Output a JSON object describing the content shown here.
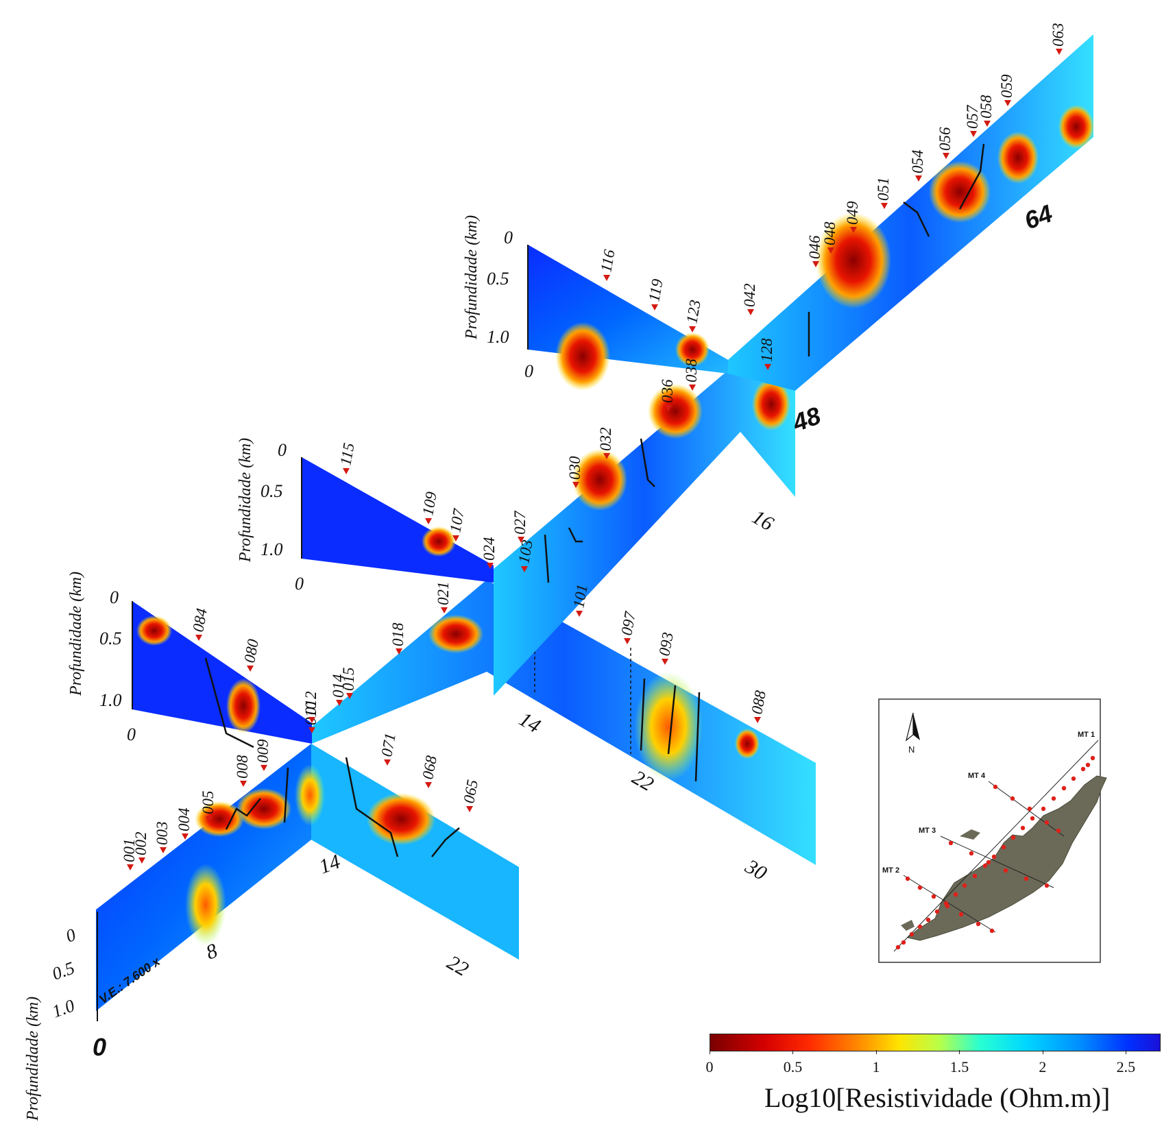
{
  "axis_label": "Profundidade (km)",
  "vertical_exaggeration": "V.E.: 7.600 x",
  "sections": [
    {
      "id": "MT2",
      "depth_ticks": [
        "0",
        "0.5",
        "1.0"
      ],
      "distance_ticks": [
        "0",
        "8",
        "14",
        "22"
      ],
      "stations": [
        "001",
        "002",
        "003",
        "004",
        "005",
        "008",
        "009",
        "010",
        "071",
        "068",
        "065"
      ]
    },
    {
      "id": "MT3",
      "depth_ticks": [
        "0",
        "0.5",
        "1.0",
        "0"
      ],
      "distance_ticks": [
        "14",
        "22",
        "30"
      ],
      "stations": [
        "084",
        "080",
        "012",
        "014",
        "015",
        "018",
        "021",
        "103",
        "101",
        "097",
        "093",
        "088"
      ]
    },
    {
      "id": "MT4",
      "depth_ticks": [
        "0",
        "0.5",
        "1.0",
        "0"
      ],
      "distance_ticks": [
        "16"
      ],
      "stations": [
        "115",
        "109",
        "107",
        "024",
        "027",
        "030",
        "032",
        "036",
        "038"
      ]
    },
    {
      "id": "MT1",
      "depth_ticks": [
        "0",
        "0.5",
        "1.0",
        "0"
      ],
      "distance_ticks": [
        "48",
        "64"
      ],
      "stations": [
        "116",
        "119",
        "123",
        "128",
        "042",
        "046",
        "048",
        "049",
        "051",
        "054",
        "056",
        "057",
        "058",
        "059",
        "063"
      ]
    }
  ],
  "legend": {
    "title": "Log10[Resistividade (Ohm.m)]",
    "ticks": [
      "0",
      "0.5",
      "1",
      "1.5",
      "2",
      "2.5"
    ],
    "colors": [
      "#7a0000",
      "#ff2a00",
      "#ffe400",
      "#29ffd2",
      "#0090ff",
      "#1a10d8"
    ]
  },
  "location_map": {
    "north_label": "N",
    "lines": [
      "MT 1",
      "MT 2",
      "MT 3",
      "MT 4"
    ],
    "land_color": "#6b6a58",
    "station_color": "#e0201a"
  }
}
